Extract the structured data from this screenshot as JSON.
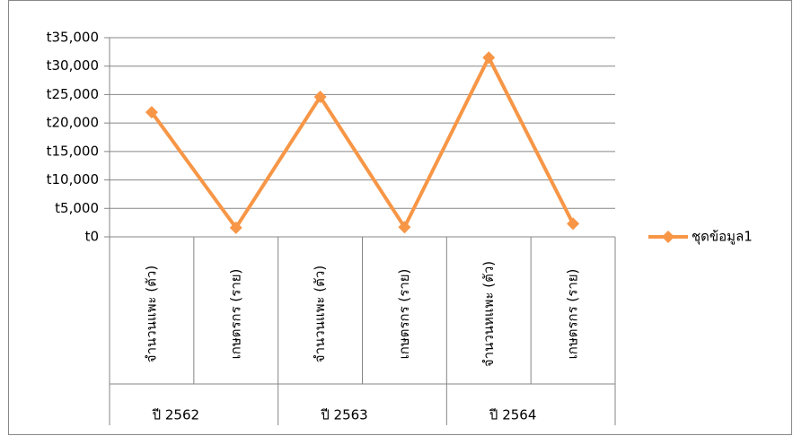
{
  "chart_data": {
    "type": "line",
    "categories": [
      "จำนวนแพะ (ตัว)",
      "เกษตรกร (ราย)",
      "จำนวนแพะ (ตัว)",
      "เกษตรกร (ราย)",
      "จำนวนหแพะ (ตัว)",
      "เกษตรกร (ราย)"
    ],
    "groups": [
      "ปี 2562",
      "ปี 2563",
      "ปี 2564"
    ],
    "series": [
      {
        "name": "ชุดข้อมูล1",
        "color": "#f79646",
        "values": [
          21900,
          1600,
          24600,
          1700,
          31500,
          2300
        ]
      }
    ],
    "ylim": [
      0,
      35000
    ],
    "yticks": [
      {
        "value": 0,
        "label": "t0"
      },
      {
        "value": 5000,
        "label": "t5,000"
      },
      {
        "value": 10000,
        "label": "t10,000"
      },
      {
        "value": 15000,
        "label": "t15,000"
      },
      {
        "value": 20000,
        "label": "t20,000"
      },
      {
        "value": 25000,
        "label": "t25,000"
      },
      {
        "value": 30000,
        "label": "t30,000"
      },
      {
        "value": 35000,
        "label": "t35,000"
      }
    ],
    "grid": true,
    "legend": "right"
  }
}
